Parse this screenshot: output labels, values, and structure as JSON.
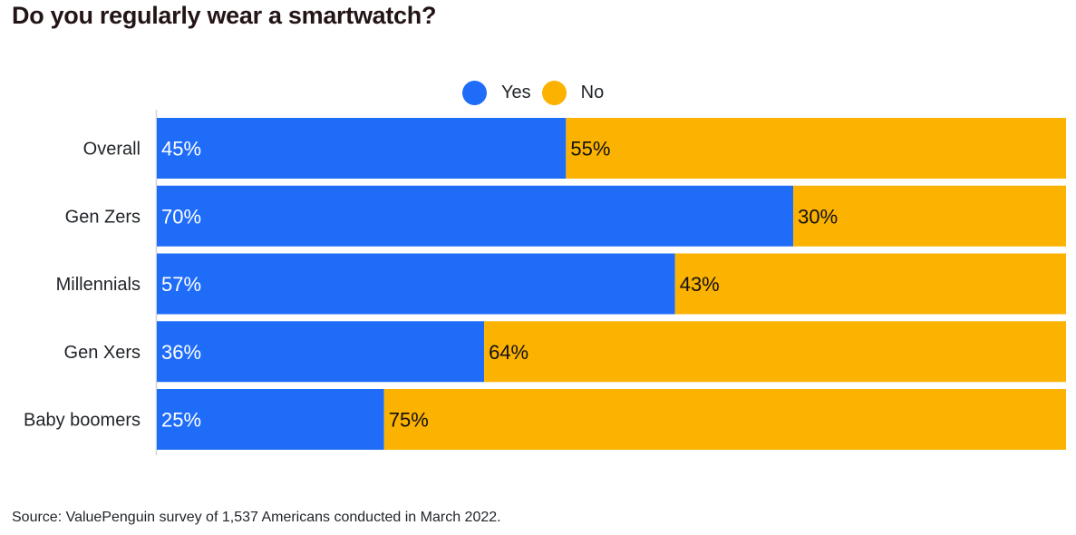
{
  "chart_data": {
    "type": "bar",
    "orientation": "horizontal",
    "stacked": true,
    "title": "Do you regularly wear a smartwatch?",
    "categories": [
      "Overall",
      "Gen Zers",
      "Millennials",
      "Gen Xers",
      "Baby boomers"
    ],
    "series": [
      {
        "name": "Yes",
        "color": "#1f6cf9",
        "values": [
          45,
          70,
          57,
          36,
          25
        ],
        "labels": [
          "45%",
          "70%",
          "57%",
          "36%",
          "25%"
        ]
      },
      {
        "name": "No",
        "color": "#fbb201",
        "values": [
          55,
          30,
          43,
          64,
          75
        ],
        "labels": [
          "55%",
          "30%",
          "43%",
          "64%",
          "75%"
        ]
      }
    ],
    "xlim": [
      0,
      100
    ],
    "xlabel": "",
    "ylabel": "",
    "grid": false,
    "legend_position": "top-center",
    "source": "Source: ValuePenguin survey of 1,537 Americans conducted in March 2022."
  }
}
